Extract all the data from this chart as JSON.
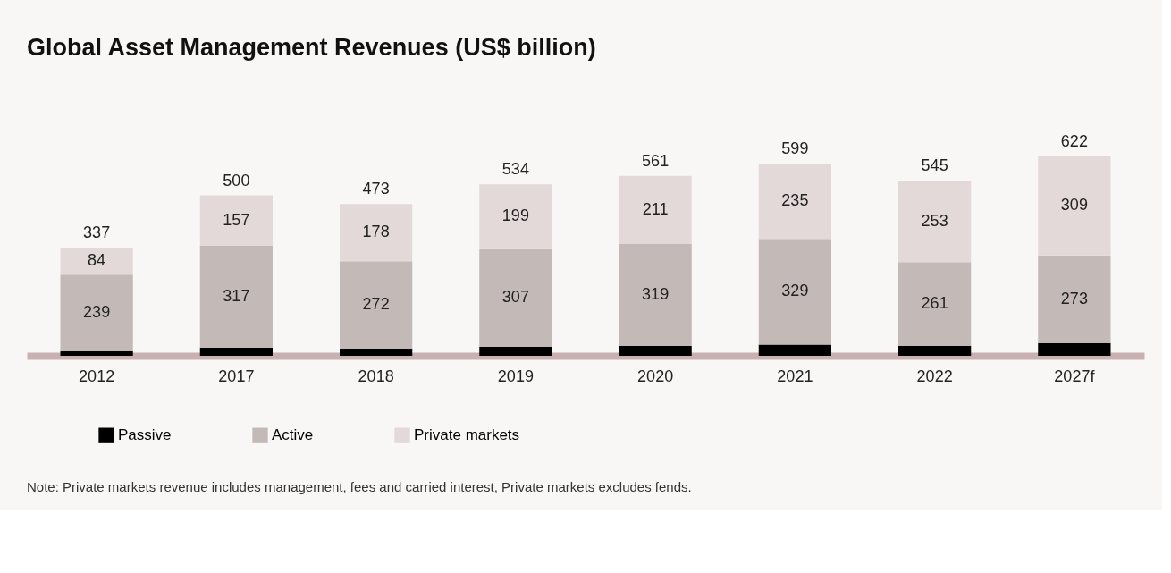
{
  "chart_data": {
    "type": "bar",
    "title": "Global Asset Management Revenues (US$ billion)",
    "categories": [
      "2012",
      "2017",
      "2018",
      "2019",
      "2020",
      "2021",
      "2022",
      "2027f"
    ],
    "stacked": true,
    "series": [
      {
        "name": "Passive",
        "color": "#000000",
        "values": [
          14,
          26,
          23,
          28,
          31,
          35,
          31,
          40
        ],
        "value_labels": [
          null,
          null,
          null,
          null,
          null,
          null,
          null,
          null
        ]
      },
      {
        "name": "Active",
        "color": "#c3b9b7",
        "values": [
          239,
          317,
          272,
          307,
          319,
          329,
          261,
          273
        ],
        "value_labels": [
          "239",
          "317",
          "272",
          "307",
          "319",
          "329",
          "261",
          "273"
        ]
      },
      {
        "name": "Private markets",
        "color": "#e4d9d9",
        "values": [
          84,
          157,
          178,
          199,
          211,
          235,
          253,
          309
        ],
        "value_labels": [
          "84",
          "157",
          "178",
          "199",
          "211",
          "235",
          "253",
          "309"
        ]
      }
    ],
    "totals": [
      "337",
      "500",
      "473",
      "534",
      "561",
      "599",
      "545",
      "622"
    ],
    "legend": "bottom left",
    "grid": false,
    "annotations": [
      "Note: Private markets revenue includes management, fees and carried interest, Private markets excludes fends."
    ]
  }
}
